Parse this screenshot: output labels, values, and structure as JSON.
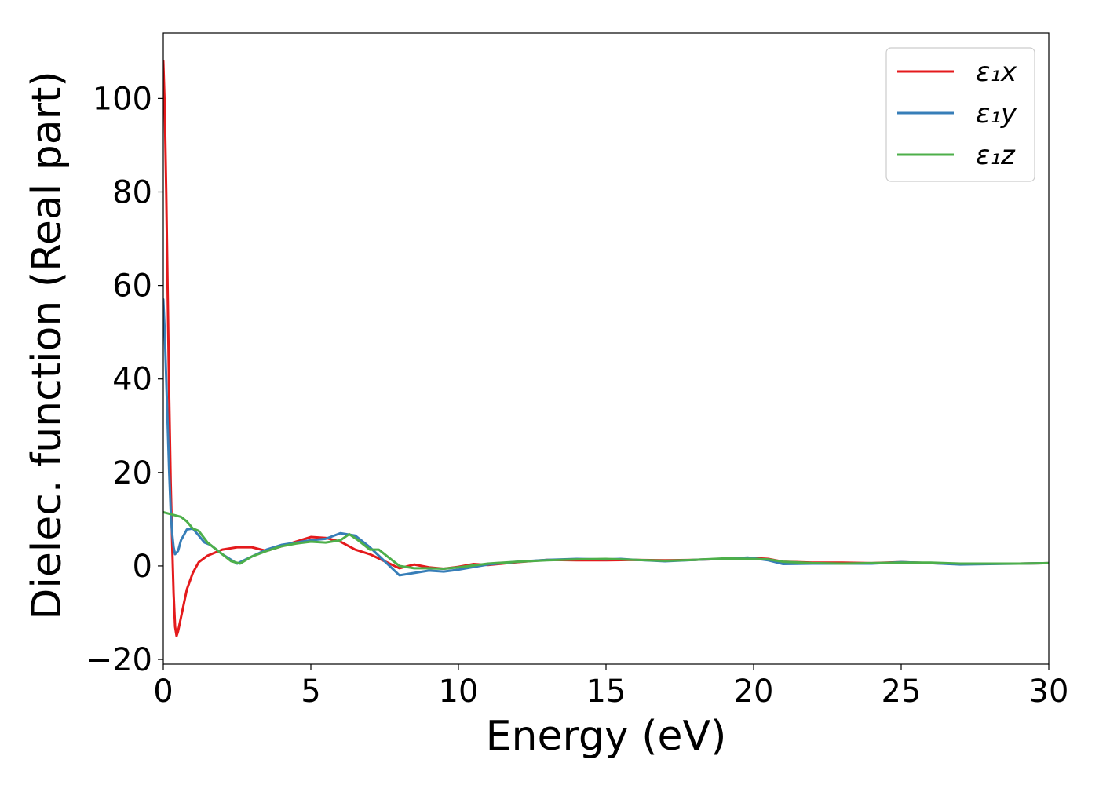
{
  "chart_data": {
    "type": "line",
    "title": "",
    "xlabel": "Energy (eV)",
    "ylabel": "Dielec. function (Real part)",
    "xlim": [
      0,
      30
    ],
    "ylim": [
      -21,
      114
    ],
    "x_ticks": [
      0,
      5,
      10,
      15,
      20,
      25,
      30
    ],
    "y_ticks": [
      -20,
      0,
      20,
      40,
      60,
      80,
      100
    ],
    "x_tick_labels": [
      "0",
      "5",
      "10",
      "15",
      "20",
      "25",
      "30"
    ],
    "y_tick_labels": [
      "−20",
      "0",
      "20",
      "40",
      "60",
      "80",
      "100"
    ],
    "grid": false,
    "legend_position": "top-right",
    "series": [
      {
        "name": "ε₁x",
        "color": "#e41a1c",
        "x": [
          0,
          0.05,
          0.1,
          0.15,
          0.2,
          0.25,
          0.3,
          0.35,
          0.4,
          0.45,
          0.5,
          0.6,
          0.7,
          0.8,
          1.0,
          1.2,
          1.5,
          2.0,
          2.5,
          3.0,
          3.5,
          4.0,
          4.5,
          5.0,
          5.5,
          6.0,
          6.5,
          7.0,
          7.5,
          8.0,
          8.5,
          9.0,
          9.5,
          10.0,
          10.5,
          11.0,
          12.0,
          13.0,
          14.0,
          15.0,
          16.0,
          17.0,
          18.0,
          19.0,
          19.5,
          20.0,
          20.5,
          21.0,
          22.0,
          23.0,
          24.0,
          25.0,
          26.0,
          27.0,
          28.0,
          29.0,
          30.0
        ],
        "values": [
          108,
          98,
          80,
          58,
          36,
          18,
          5,
          -6,
          -13,
          -15,
          -14,
          -11,
          -8,
          -5,
          -1.5,
          0.8,
          2.2,
          3.5,
          4.0,
          4.0,
          3.2,
          4.2,
          5.2,
          6.2,
          6.0,
          5.2,
          3.5,
          2.5,
          1.0,
          -0.5,
          0.3,
          -0.3,
          -0.6,
          -0.2,
          0.4,
          0.2,
          0.8,
          1.3,
          1.2,
          1.2,
          1.3,
          1.2,
          1.3,
          1.5,
          1.6,
          1.7,
          1.5,
          0.9,
          0.7,
          0.7,
          0.6,
          0.8,
          0.6,
          0.4,
          0.5,
          0.5,
          0.6
        ]
      },
      {
        "name": "ε₁y",
        "color": "#377eb8",
        "x": [
          0,
          0.05,
          0.1,
          0.15,
          0.2,
          0.25,
          0.3,
          0.35,
          0.4,
          0.5,
          0.6,
          0.8,
          1.0,
          1.2,
          1.4,
          1.6,
          2.0,
          2.5,
          3.0,
          3.5,
          4.0,
          4.5,
          5.0,
          5.5,
          6.0,
          6.5,
          7.0,
          7.5,
          8.0,
          8.5,
          9.0,
          9.5,
          10.0,
          11.0,
          12.0,
          13.0,
          14.0,
          15.0,
          15.5,
          16.0,
          17.0,
          18.0,
          19.0,
          19.8,
          20.5,
          21.0,
          22.0,
          23.0,
          24.0,
          25.0,
          26.0,
          27.0,
          28.0,
          29.0,
          30.0
        ],
        "values": [
          57,
          50,
          40,
          30,
          20,
          12,
          7,
          4,
          2.5,
          3.2,
          5.5,
          7.8,
          8.0,
          6.5,
          5.0,
          4.5,
          2.5,
          0.5,
          2.0,
          3.5,
          4.5,
          5.0,
          5.5,
          5.8,
          7.0,
          6.5,
          4.0,
          1.0,
          -2.0,
          -1.5,
          -1.0,
          -1.2,
          -0.8,
          0.3,
          0.9,
          1.3,
          1.5,
          1.4,
          1.5,
          1.3,
          1.0,
          1.3,
          1.5,
          1.8,
          1.2,
          0.4,
          0.5,
          0.5,
          0.5,
          0.8,
          0.6,
          0.3,
          0.4,
          0.5,
          0.6
        ]
      },
      {
        "name": "ε₁z",
        "color": "#4daf4a",
        "x": [
          0,
          0.3,
          0.6,
          0.8,
          1.0,
          1.2,
          1.5,
          1.8,
          2.0,
          2.3,
          2.6,
          3.0,
          3.5,
          4.0,
          4.5,
          5.0,
          5.5,
          6.0,
          6.3,
          6.6,
          7.0,
          7.3,
          7.6,
          8.0,
          8.5,
          9.0,
          9.5,
          10.0,
          11.0,
          12.0,
          13.0,
          14.0,
          15.0,
          16.0,
          17.0,
          18.0,
          19.0,
          20.0,
          20.5,
          21.0,
          22.0,
          23.0,
          24.0,
          25.0,
          26.0,
          27.0,
          28.0,
          29.0,
          30.0
        ],
        "values": [
          11.5,
          11.0,
          10.5,
          9.5,
          8.0,
          7.5,
          5.0,
          3.5,
          2.5,
          1.0,
          0.5,
          2.0,
          3.2,
          4.2,
          4.8,
          5.2,
          5.0,
          5.5,
          6.8,
          5.5,
          3.5,
          3.5,
          2.0,
          0.0,
          -0.5,
          -0.5,
          -0.6,
          -0.3,
          0.5,
          0.9,
          1.2,
          1.4,
          1.5,
          1.3,
          1.1,
          1.3,
          1.6,
          1.5,
          1.4,
          0.9,
          0.6,
          0.5,
          0.6,
          0.7,
          0.7,
          0.5,
          0.5,
          0.5,
          0.6
        ]
      }
    ]
  }
}
